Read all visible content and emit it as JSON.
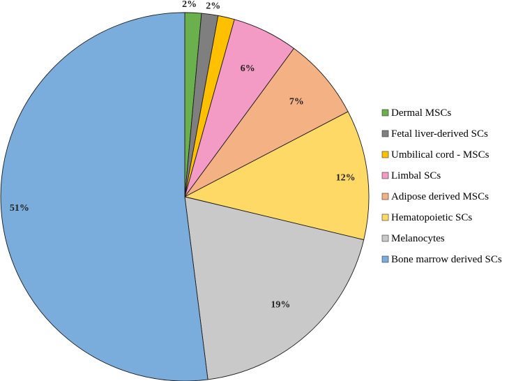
{
  "chart_data": {
    "type": "pie",
    "title": "",
    "legend_position": "right",
    "start": "top",
    "direction": "clockwise",
    "slices": [
      {
        "label": "Dermal MSCs",
        "value": 2,
        "display": "2%",
        "color": "#6ab04c"
      },
      {
        "label": "Fetal liver-derived SCs",
        "value": 2,
        "display": "2%",
        "color": "#7f7f7f"
      },
      {
        "label": "Umbilical cord - MSCs",
        "value": 1,
        "display": "1%",
        "color": "#ffc000"
      },
      {
        "label": "Limbal SCs",
        "value": 6,
        "display": "6%",
        "color": "#f39ac5"
      },
      {
        "label": "Adipose derived MSCs",
        "value": 7,
        "display": "7%",
        "color": "#f4b183"
      },
      {
        "label": "Hematopoietic SCs",
        "value": 12,
        "display": "12%",
        "color": "#ffd966"
      },
      {
        "label": "Melanocytes",
        "value": 19,
        "display": "19%",
        "color": "#c9c9c9"
      },
      {
        "label": "Bone marrow derived SCs",
        "value": 51,
        "display": "51%",
        "color": "#7aacdc"
      }
    ]
  }
}
